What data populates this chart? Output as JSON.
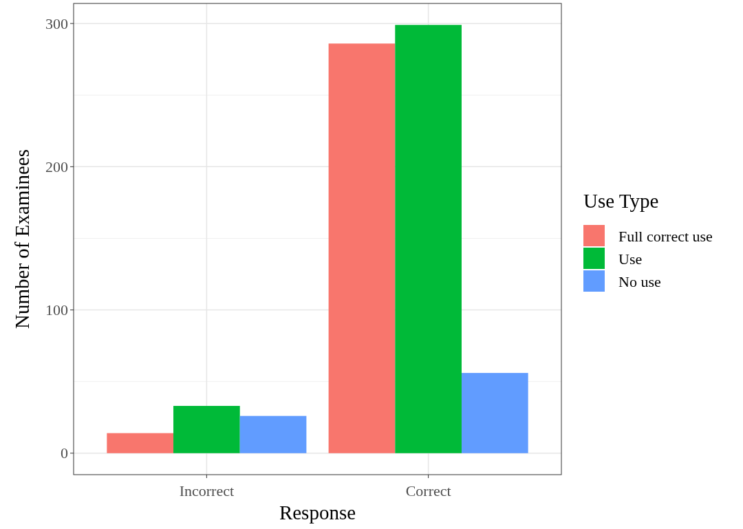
{
  "chart_data": {
    "type": "bar",
    "xlabel": "Response",
    "ylabel": "Number of Examinees",
    "legend_title": "Use Type",
    "categories": [
      "Incorrect",
      "Correct"
    ],
    "series": [
      {
        "name": "Full correct use",
        "color": "#f8766d",
        "values": [
          14,
          286
        ]
      },
      {
        "name": "Use",
        "color": "#00ba38",
        "values": [
          33,
          299
        ]
      },
      {
        "name": "No use",
        "color": "#619cff",
        "values": [
          26,
          56
        ]
      }
    ],
    "ylim": [
      -15,
      314
    ],
    "yticks": [
      0,
      100,
      200,
      300
    ],
    "grid": true,
    "legend": "right"
  }
}
